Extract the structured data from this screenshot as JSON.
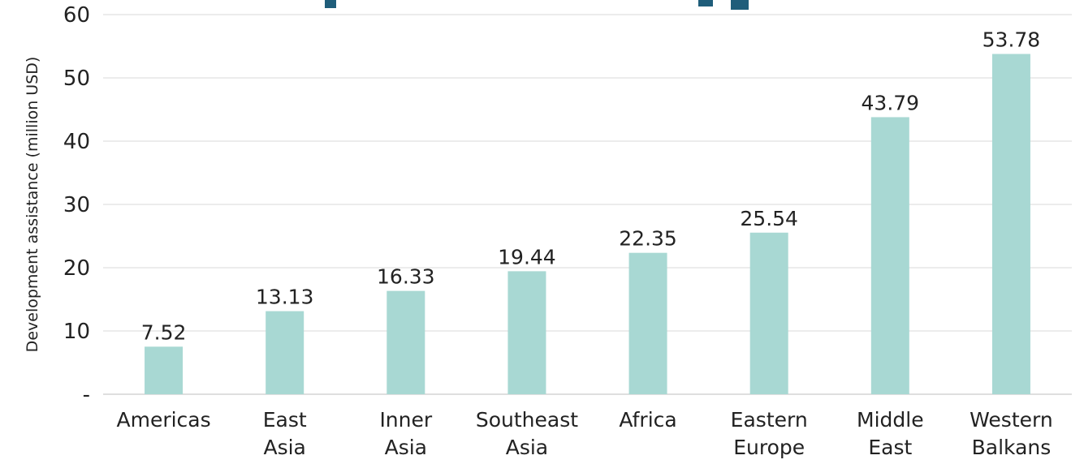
{
  "chart_data": {
    "type": "bar",
    "title": "",
    "xlabel": "",
    "ylabel": "Development assistance (million USD)",
    "categories": [
      [
        "Americas"
      ],
      [
        "East",
        "Asia"
      ],
      [
        "Inner",
        "Asia"
      ],
      [
        "Southeast",
        "Asia"
      ],
      [
        "Africa"
      ],
      [
        "Eastern",
        "Europe"
      ],
      [
        "Middle",
        "East"
      ],
      [
        "Western",
        "Balkans"
      ]
    ],
    "values": [
      7.52,
      13.13,
      16.33,
      19.44,
      22.35,
      25.54,
      43.79,
      53.78
    ],
    "value_labels": [
      "7.52",
      "13.13",
      "16.33",
      "19.44",
      "22.35",
      "25.54",
      "43.79",
      "53.78"
    ],
    "ylim": [
      0,
      60
    ],
    "yticks": [
      0,
      10,
      20,
      30,
      40,
      50,
      60
    ],
    "ytick_labels": [
      "-",
      "10",
      "20",
      "30",
      "40",
      "50",
      "60"
    ],
    "grid": true,
    "legend": "none",
    "bar_color": "#a8d8d3"
  }
}
